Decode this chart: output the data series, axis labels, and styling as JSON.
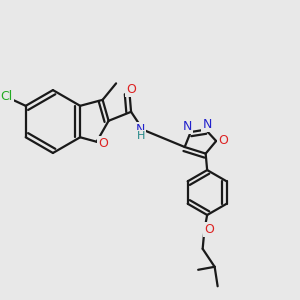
{
  "bg_color": "#e8e8e8",
  "bond_color": "#1a1a1a",
  "bond_width": 1.6,
  "fig_size": [
    3.0,
    3.0
  ],
  "dpi": 100,
  "colors": {
    "Cl": "#22aa22",
    "O": "#dd2222",
    "N": "#2222cc",
    "H": "#228888",
    "C": "#1a1a1a"
  }
}
